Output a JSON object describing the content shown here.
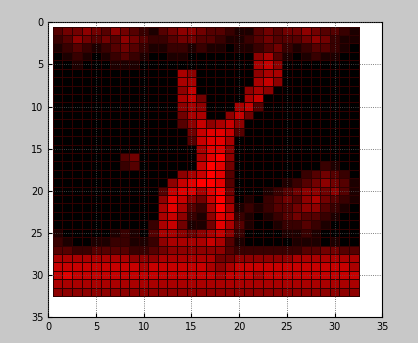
{
  "chart_data": {
    "type": "heatmap",
    "x": [
      1,
      2,
      3,
      4,
      5,
      6,
      7,
      8,
      9,
      10,
      11,
      12,
      13,
      14,
      15,
      16,
      17,
      18,
      19,
      20,
      21,
      22,
      23,
      24,
      25,
      26,
      27,
      28,
      29,
      30,
      31,
      32
    ],
    "y": [
      1,
      2,
      3,
      4,
      5,
      6,
      7,
      8,
      9,
      10,
      11,
      12,
      13,
      14,
      15,
      16,
      17,
      18,
      19,
      20,
      21,
      22,
      23,
      24,
      25,
      26,
      27,
      28,
      29,
      30,
      31,
      32
    ],
    "xlim": [
      0,
      35
    ],
    "ylim": [
      35,
      0
    ],
    "xticks": [
      0,
      5,
      10,
      15,
      20,
      25,
      30,
      35
    ],
    "yticks": [
      0,
      5,
      10,
      15,
      20,
      25,
      30,
      35
    ],
    "grid": true,
    "color": "#ff0000",
    "cells": [
      [
        3,
        4,
        4,
        5,
        4,
        3,
        5,
        4,
        3,
        2,
        1,
        3,
        4,
        5,
        5,
        4,
        3,
        3,
        2,
        1,
        1,
        3,
        4,
        3,
        4,
        4,
        5,
        4,
        3,
        3,
        2,
        1
      ],
      [
        2,
        3,
        5,
        4,
        3,
        4,
        3,
        5,
        4,
        3,
        2,
        2,
        3,
        4,
        4,
        3,
        3,
        2,
        1,
        1,
        2,
        3,
        4,
        3,
        3,
        3,
        4,
        5,
        4,
        2,
        1,
        1
      ],
      [
        1,
        2,
        3,
        2,
        1,
        2,
        3,
        4,
        3,
        2,
        1,
        1,
        2,
        2,
        1,
        2,
        1,
        1,
        0,
        1,
        1,
        2,
        3,
        4,
        2,
        1,
        2,
        3,
        3,
        2,
        1,
        0
      ],
      [
        0,
        1,
        2,
        1,
        0,
        1,
        2,
        3,
        2,
        1,
        0,
        0,
        1,
        1,
        0,
        0,
        0,
        0,
        0,
        0,
        0,
        5,
        6,
        3,
        1,
        0,
        1,
        2,
        1,
        1,
        0,
        0
      ],
      [
        0,
        0,
        1,
        0,
        0,
        0,
        1,
        1,
        1,
        0,
        0,
        0,
        0,
        0,
        0,
        0,
        0,
        0,
        0,
        0,
        0,
        6,
        7,
        5,
        0,
        0,
        0,
        0,
        0,
        0,
        0,
        0
      ],
      [
        0,
        0,
        0,
        0,
        0,
        0,
        0,
        0,
        0,
        0,
        0,
        0,
        0,
        6,
        5,
        0,
        0,
        0,
        0,
        0,
        0,
        5,
        6,
        6,
        0,
        0,
        0,
        0,
        0,
        0,
        0,
        0
      ],
      [
        0,
        0,
        0,
        0,
        0,
        0,
        0,
        0,
        0,
        0,
        0,
        0,
        0,
        6,
        6,
        0,
        0,
        0,
        0,
        0,
        0,
        6,
        7,
        5,
        0,
        0,
        0,
        0,
        0,
        0,
        0,
        0
      ],
      [
        0,
        0,
        0,
        0,
        0,
        0,
        0,
        0,
        0,
        0,
        0,
        0,
        0,
        5,
        7,
        0,
        0,
        0,
        0,
        0,
        5,
        6,
        5,
        0,
        0,
        0,
        0,
        0,
        0,
        0,
        0,
        0
      ],
      [
        0,
        0,
        0,
        0,
        0,
        0,
        0,
        0,
        0,
        0,
        0,
        0,
        0,
        6,
        7,
        4,
        0,
        0,
        0,
        0,
        6,
        7,
        0,
        0,
        0,
        0,
        0,
        0,
        0,
        0,
        0,
        0
      ],
      [
        0,
        0,
        0,
        0,
        0,
        0,
        0,
        0,
        0,
        0,
        0,
        0,
        0,
        5,
        6,
        5,
        0,
        0,
        0,
        6,
        7,
        3,
        0,
        0,
        0,
        0,
        0,
        0,
        0,
        0,
        0,
        0
      ],
      [
        0,
        0,
        0,
        0,
        0,
        0,
        0,
        0,
        0,
        0,
        0,
        0,
        0,
        4,
        6,
        6,
        0,
        0,
        5,
        7,
        4,
        0,
        0,
        0,
        0,
        0,
        0,
        0,
        0,
        0,
        0,
        0
      ],
      [
        0,
        0,
        0,
        0,
        0,
        0,
        0,
        0,
        0,
        0,
        0,
        0,
        0,
        3,
        5,
        7,
        5,
        6,
        7,
        5,
        0,
        0,
        0,
        0,
        0,
        0,
        0,
        0,
        0,
        0,
        0,
        0
      ],
      [
        0,
        0,
        0,
        0,
        0,
        0,
        0,
        0,
        0,
        0,
        0,
        0,
        0,
        0,
        4,
        7,
        8,
        8,
        7,
        3,
        0,
        0,
        0,
        0,
        0,
        0,
        0,
        0,
        0,
        0,
        0,
        0
      ],
      [
        0,
        0,
        0,
        0,
        0,
        0,
        0,
        0,
        0,
        0,
        0,
        0,
        0,
        0,
        3,
        7,
        8,
        8,
        6,
        0,
        0,
        0,
        0,
        0,
        0,
        0,
        0,
        0,
        0,
        0,
        0,
        0
      ],
      [
        0,
        0,
        0,
        0,
        0,
        0,
        0,
        0,
        0,
        0,
        0,
        0,
        0,
        0,
        0,
        6,
        8,
        8,
        5,
        0,
        0,
        0,
        0,
        0,
        0,
        0,
        0,
        0,
        0,
        0,
        0,
        0
      ],
      [
        0,
        0,
        0,
        0,
        0,
        0,
        0,
        3,
        4,
        0,
        0,
        0,
        0,
        0,
        0,
        6,
        8,
        9,
        5,
        0,
        0,
        0,
        0,
        0,
        0,
        0,
        0,
        0,
        0,
        0,
        0,
        0
      ],
      [
        0,
        0,
        0,
        0,
        0,
        0,
        0,
        2,
        3,
        0,
        0,
        0,
        0,
        0,
        0,
        7,
        9,
        8,
        4,
        0,
        0,
        0,
        0,
        0,
        0,
        0,
        0,
        0,
        2,
        1,
        0,
        0
      ],
      [
        0,
        0,
        0,
        0,
        0,
        0,
        0,
        0,
        0,
        0,
        0,
        0,
        0,
        5,
        6,
        7,
        9,
        8,
        3,
        0,
        0,
        0,
        0,
        0,
        0,
        0,
        2,
        3,
        4,
        3,
        2,
        0
      ],
      [
        0,
        0,
        0,
        0,
        0,
        0,
        0,
        0,
        0,
        0,
        0,
        0,
        5,
        7,
        8,
        9,
        9,
        8,
        3,
        0,
        0,
        0,
        0,
        0,
        1,
        2,
        3,
        4,
        5,
        4,
        3,
        1
      ],
      [
        0,
        0,
        0,
        0,
        0,
        0,
        0,
        0,
        0,
        0,
        0,
        3,
        7,
        8,
        8,
        6,
        8,
        9,
        4,
        0,
        0,
        0,
        1,
        2,
        3,
        4,
        5,
        5,
        4,
        5,
        3,
        1
      ],
      [
        0,
        0,
        0,
        0,
        0,
        0,
        0,
        0,
        0,
        0,
        0,
        5,
        8,
        7,
        5,
        4,
        7,
        9,
        5,
        0,
        1,
        0,
        2,
        3,
        4,
        3,
        5,
        6,
        4,
        3,
        2,
        1
      ],
      [
        0,
        0,
        0,
        0,
        0,
        0,
        0,
        0,
        0,
        0,
        0,
        6,
        8,
        6,
        3,
        2,
        6,
        9,
        6,
        1,
        2,
        1,
        2,
        3,
        3,
        4,
        5,
        5,
        3,
        2,
        1,
        0
      ],
      [
        0,
        0,
        0,
        0,
        0,
        0,
        0,
        0,
        0,
        0,
        0,
        6,
        7,
        5,
        2,
        1,
        5,
        8,
        7,
        2,
        1,
        0,
        1,
        2,
        3,
        4,
        3,
        3,
        2,
        1,
        0,
        0
      ],
      [
        0,
        0,
        0,
        0,
        0,
        0,
        0,
        0,
        0,
        0,
        2,
        6,
        7,
        4,
        1,
        1,
        4,
        8,
        6,
        3,
        1,
        0,
        0,
        1,
        2,
        2,
        3,
        2,
        1,
        0,
        0,
        0
      ],
      [
        1,
        0,
        0,
        0,
        0,
        0,
        1,
        2,
        1,
        0,
        3,
        6,
        6,
        5,
        4,
        5,
        6,
        7,
        5,
        2,
        0,
        0,
        0,
        0,
        1,
        1,
        2,
        1,
        0,
        0,
        0,
        0
      ],
      [
        2,
        1,
        0,
        0,
        1,
        1,
        2,
        2,
        1,
        1,
        2,
        5,
        6,
        6,
        6,
        6,
        7,
        6,
        3,
        1,
        0,
        0,
        0,
        0,
        0,
        1,
        1,
        1,
        0,
        1,
        0,
        0
      ],
      [
        3,
        3,
        2,
        2,
        3,
        3,
        3,
        3,
        2,
        2,
        3,
        4,
        5,
        5,
        5,
        5,
        5,
        5,
        3,
        2,
        2,
        2,
        2,
        2,
        2,
        2,
        3,
        3,
        4,
        4,
        3,
        3
      ],
      [
        6,
        6,
        6,
        6,
        6,
        6,
        6,
        6,
        5,
        5,
        5,
        6,
        6,
        6,
        6,
        6,
        6,
        4,
        4,
        5,
        5,
        5,
        5,
        5,
        5,
        6,
        6,
        6,
        6,
        6,
        6,
        6
      ],
      [
        7,
        7,
        7,
        7,
        7,
        7,
        7,
        7,
        7,
        6,
        7,
        7,
        7,
        7,
        7,
        7,
        6,
        5,
        6,
        7,
        7,
        7,
        7,
        7,
        7,
        7,
        7,
        7,
        7,
        7,
        7,
        6
      ],
      [
        7,
        8,
        7,
        7,
        7,
        7,
        7,
        7,
        7,
        7,
        7,
        7,
        7,
        7,
        7,
        7,
        7,
        6,
        7,
        7,
        7,
        6,
        7,
        7,
        7,
        7,
        7,
        7,
        7,
        7,
        7,
        7
      ],
      [
        6,
        6,
        6,
        6,
        6,
        6,
        6,
        6,
        6,
        6,
        6,
        6,
        6,
        6,
        6,
        6,
        6,
        6,
        6,
        6,
        6,
        6,
        6,
        6,
        6,
        6,
        6,
        6,
        6,
        6,
        6,
        6
      ],
      [
        5,
        5,
        5,
        5,
        5,
        5,
        5,
        5,
        5,
        5,
        5,
        5,
        5,
        5,
        5,
        5,
        5,
        5,
        5,
        5,
        5,
        5,
        5,
        5,
        5,
        5,
        5,
        5,
        5,
        5,
        5,
        5
      ]
    ]
  }
}
